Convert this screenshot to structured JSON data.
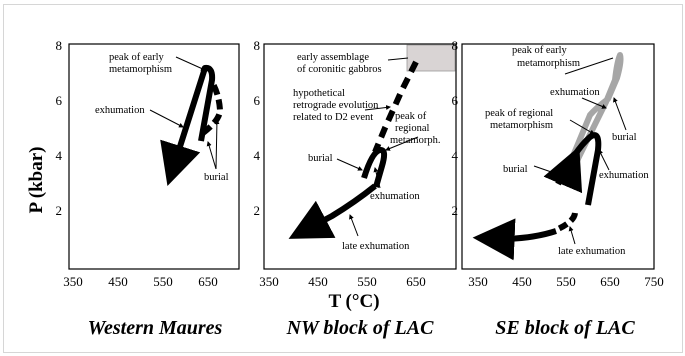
{
  "y_axis_title": "P (kbar)",
  "x_axis_title": "T (°C)",
  "panels": [
    {
      "title": "Western Maures",
      "x_ticks": [
        "350",
        "450",
        "550",
        "650"
      ],
      "y_ticks": [
        "8",
        "6",
        "4",
        "2"
      ],
      "labels": [
        "peak of early",
        "metamorphism",
        "exhumation",
        "burial"
      ]
    },
    {
      "title": "NW block of LAC",
      "x_ticks": [
        "350",
        "450",
        "550",
        "650"
      ],
      "y_ticks": [
        "8",
        "6",
        "4",
        "2"
      ],
      "labels": [
        "early assemblage",
        "of coronitic gabbros",
        "hypothetical",
        "retrograde evolution",
        "related to D2 event",
        "peak of",
        "regional",
        "metamorph.",
        "burial",
        "exhumation",
        "late exhumation"
      ]
    },
    {
      "title": "SE block of LAC",
      "x_ticks": [
        "350",
        "450",
        "550",
        "650",
        "750"
      ],
      "y_ticks": [
        "8",
        "6",
        "4",
        "2"
      ],
      "labels": [
        "peak of early",
        "metamorphism",
        "exhumation",
        "peak of regional",
        "metamorphism",
        "burial",
        "burial",
        "exhumation",
        "late exhumation"
      ]
    }
  ],
  "colors": {
    "path_early": "#000000",
    "path_se_early": "#a6a6a6",
    "box_fill": "#d9d4d4"
  }
}
